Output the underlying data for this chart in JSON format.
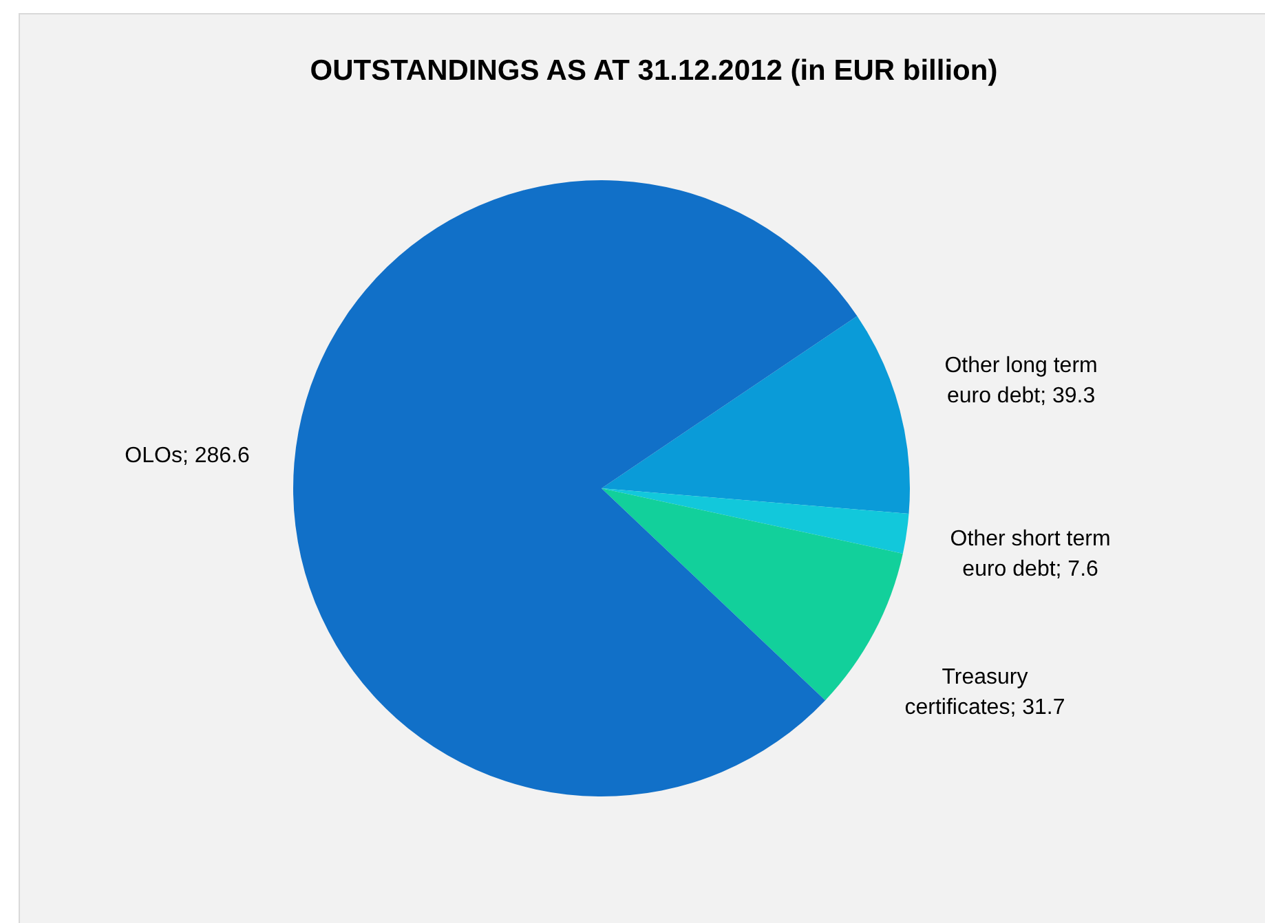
{
  "chart_data": {
    "type": "pie",
    "title": "OUTSTANDINGS AS AT 31.12.2012 (in EUR billion)",
    "categories": [
      "Other long term euro debt",
      "Other short term euro debt",
      "Treasury certificates",
      "OLOs"
    ],
    "values": [
      39.3,
      7.6,
      31.7,
      286.6
    ],
    "value_labels": [
      "; 39.3",
      "; 7.6",
      "; 31.7",
      "; 286.6"
    ],
    "colors": [
      "#0a9bd8",
      "#12c8db",
      "#12d09b",
      "#1170c8"
    ]
  }
}
